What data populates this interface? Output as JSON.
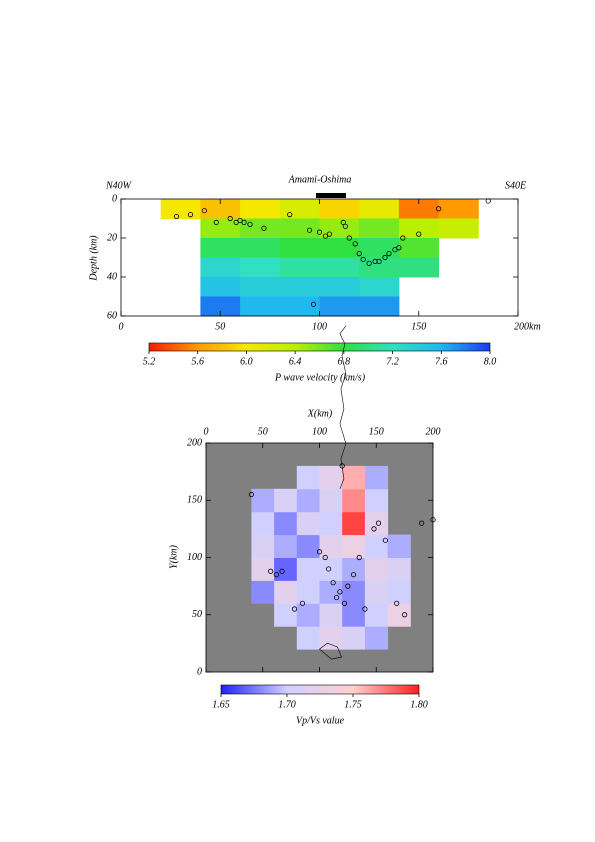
{
  "chart_data": [
    {
      "type": "heatmap",
      "title": "Amami-Oshima",
      "left_label": "N40W",
      "right_label": "S40E",
      "ylabel": "Depth (km)",
      "xlim": [
        0,
        200
      ],
      "xticks": [
        0,
        50,
        100,
        150,
        {
          "value": 200,
          "label": "200km"
        }
      ],
      "ylim": [
        0,
        60
      ],
      "yticks": [
        0,
        20,
        40,
        60
      ],
      "invert_y": true,
      "x": [
        30,
        50,
        70,
        90,
        110,
        130,
        150,
        170
      ],
      "y": [
        5,
        15,
        25,
        35,
        45,
        55
      ],
      "values": [
        [
          6.0,
          5.8,
          6.0,
          6.2,
          5.9,
          6.1,
          5.5,
          5.6
        ],
        [
          null,
          6.5,
          6.6,
          6.6,
          6.5,
          6.6,
          6.4,
          6.3
        ],
        [
          null,
          6.9,
          6.9,
          6.8,
          6.8,
          6.9,
          6.7,
          null
        ],
        [
          null,
          7.3,
          7.2,
          7.1,
          7.1,
          7.0,
          7.0,
          null
        ],
        [
          null,
          7.5,
          7.4,
          7.4,
          7.4,
          7.3,
          null,
          null
        ],
        [
          null,
          7.8,
          7.6,
          7.6,
          7.7,
          7.7,
          null,
          null
        ]
      ],
      "events": {
        "x": [
          28,
          35,
          42,
          48,
          55,
          58,
          60,
          62,
          65,
          72,
          85,
          95,
          100,
          103,
          105,
          112,
          113,
          115,
          118,
          120,
          122,
          125,
          128,
          130,
          133,
          135,
          138,
          140,
          142,
          150,
          160,
          185,
          97
        ],
        "y": [
          9,
          8,
          6,
          12,
          10,
          12,
          11,
          12,
          13,
          15,
          8,
          16,
          17,
          19,
          18,
          12,
          14,
          20,
          23,
          28,
          31,
          33,
          32,
          32,
          30,
          28,
          26,
          25,
          20,
          18,
          5,
          1,
          54
        ]
      },
      "colorbar_ticks": [
        5.2,
        5.6,
        {
          "value": 6,
          "label": "6.0"
        },
        6.4,
        6.8,
        7.2,
        7.6,
        {
          "value": 8,
          "label": "8.0"
        }
      ],
      "colorscale": [
        "#ff1a00",
        "#ff9a00",
        "#f5e800",
        "#b8f000",
        "#30e040",
        "#30e0c0",
        "#20b8f0",
        "#1a3cf0"
      ],
      "colorbar_label": "P wave velocity (km/s)"
    },
    {
      "type": "map",
      "xlabel": "X(km)",
      "ylabel": "Y(km)",
      "xlim": [
        0,
        200
      ],
      "xticks": [
        0,
        50,
        100,
        150,
        200
      ],
      "ylim": [
        0,
        200
      ],
      "yticks": [
        0,
        50,
        100,
        150,
        200
      ],
      "x": [
        50,
        70,
        90,
        110,
        130,
        150,
        170
      ],
      "y": [
        30,
        50,
        70,
        90,
        110,
        130,
        150,
        170
      ],
      "values": [
        [
          null,
          null,
          1.7,
          1.72,
          1.71,
          1.69,
          null
        ],
        [
          null,
          1.7,
          1.69,
          1.71,
          1.68,
          1.7,
          1.73
        ],
        [
          1.68,
          1.72,
          1.7,
          1.69,
          1.68,
          1.71,
          1.7
        ],
        [
          1.72,
          1.67,
          1.7,
          1.7,
          1.69,
          1.72,
          1.71
        ],
        [
          1.71,
          1.69,
          1.68,
          1.72,
          1.73,
          1.7,
          1.69
        ],
        [
          1.7,
          1.68,
          1.71,
          1.7,
          1.79,
          1.72,
          null
        ],
        [
          1.69,
          1.71,
          1.69,
          1.71,
          1.77,
          1.7,
          null
        ],
        [
          null,
          null,
          1.7,
          1.72,
          1.76,
          1.69,
          null
        ]
      ],
      "events": {
        "x": [
          40,
          57,
          62,
          67,
          78,
          85,
          100,
          105,
          108,
          112,
          115,
          118,
          122,
          125,
          130,
          135,
          140,
          148,
          152,
          158,
          168,
          175,
          190,
          200,
          120
        ],
        "y": [
          155,
          88,
          85,
          88,
          55,
          60,
          105,
          100,
          90,
          78,
          65,
          70,
          60,
          75,
          85,
          100,
          55,
          125,
          130,
          115,
          60,
          50,
          130,
          133,
          180
        ]
      },
      "colorbar_ticks": [
        1.65,
        {
          "value": 1.7,
          "label": "1.70"
        },
        1.75,
        {
          "value": 1.8,
          "label": "1.80"
        }
      ],
      "colorscale": [
        "#2020ff",
        "#d0d0ff",
        "#ffd0d0",
        "#ff2020"
      ],
      "colorbar_label": "Vp/Vs value"
    }
  ]
}
